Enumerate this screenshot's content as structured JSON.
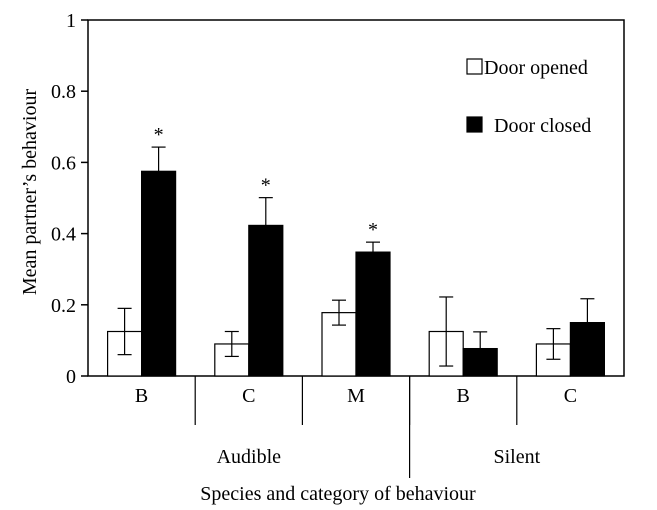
{
  "chart_data": {
    "type": "bar",
    "xlabel": "Species and category of behaviour",
    "ylabel": "Mean partner’s behaviour",
    "ylim": [
      0,
      1
    ],
    "yticks": [
      "0",
      "0.2",
      "0.4",
      "0.6",
      "0.8",
      "1"
    ],
    "grid": false,
    "legend_position": "top-right",
    "categories": [
      "B",
      "C",
      "M",
      "B",
      "C"
    ],
    "groups": [
      {
        "label": "Audible",
        "categories": [
          "B",
          "C",
          "M"
        ]
      },
      {
        "label": "Silent",
        "categories": [
          "B",
          "C"
        ]
      }
    ],
    "series": [
      {
        "name": "Door opened",
        "color": "#ffffff",
        "values": [
          0.125,
          0.09,
          0.178,
          0.125,
          0.09
        ],
        "errors": [
          0.065,
          0.035,
          0.035,
          0.097,
          0.043
        ]
      },
      {
        "name": "Door closed",
        "color": "#000000",
        "values": [
          0.575,
          0.423,
          0.348,
          0.077,
          0.15
        ],
        "errors": [
          0.068,
          0.078,
          0.028,
          0.047,
          0.067
        ]
      }
    ],
    "significance_marker": "*",
    "significant": [
      true,
      true,
      true,
      false,
      false
    ]
  }
}
